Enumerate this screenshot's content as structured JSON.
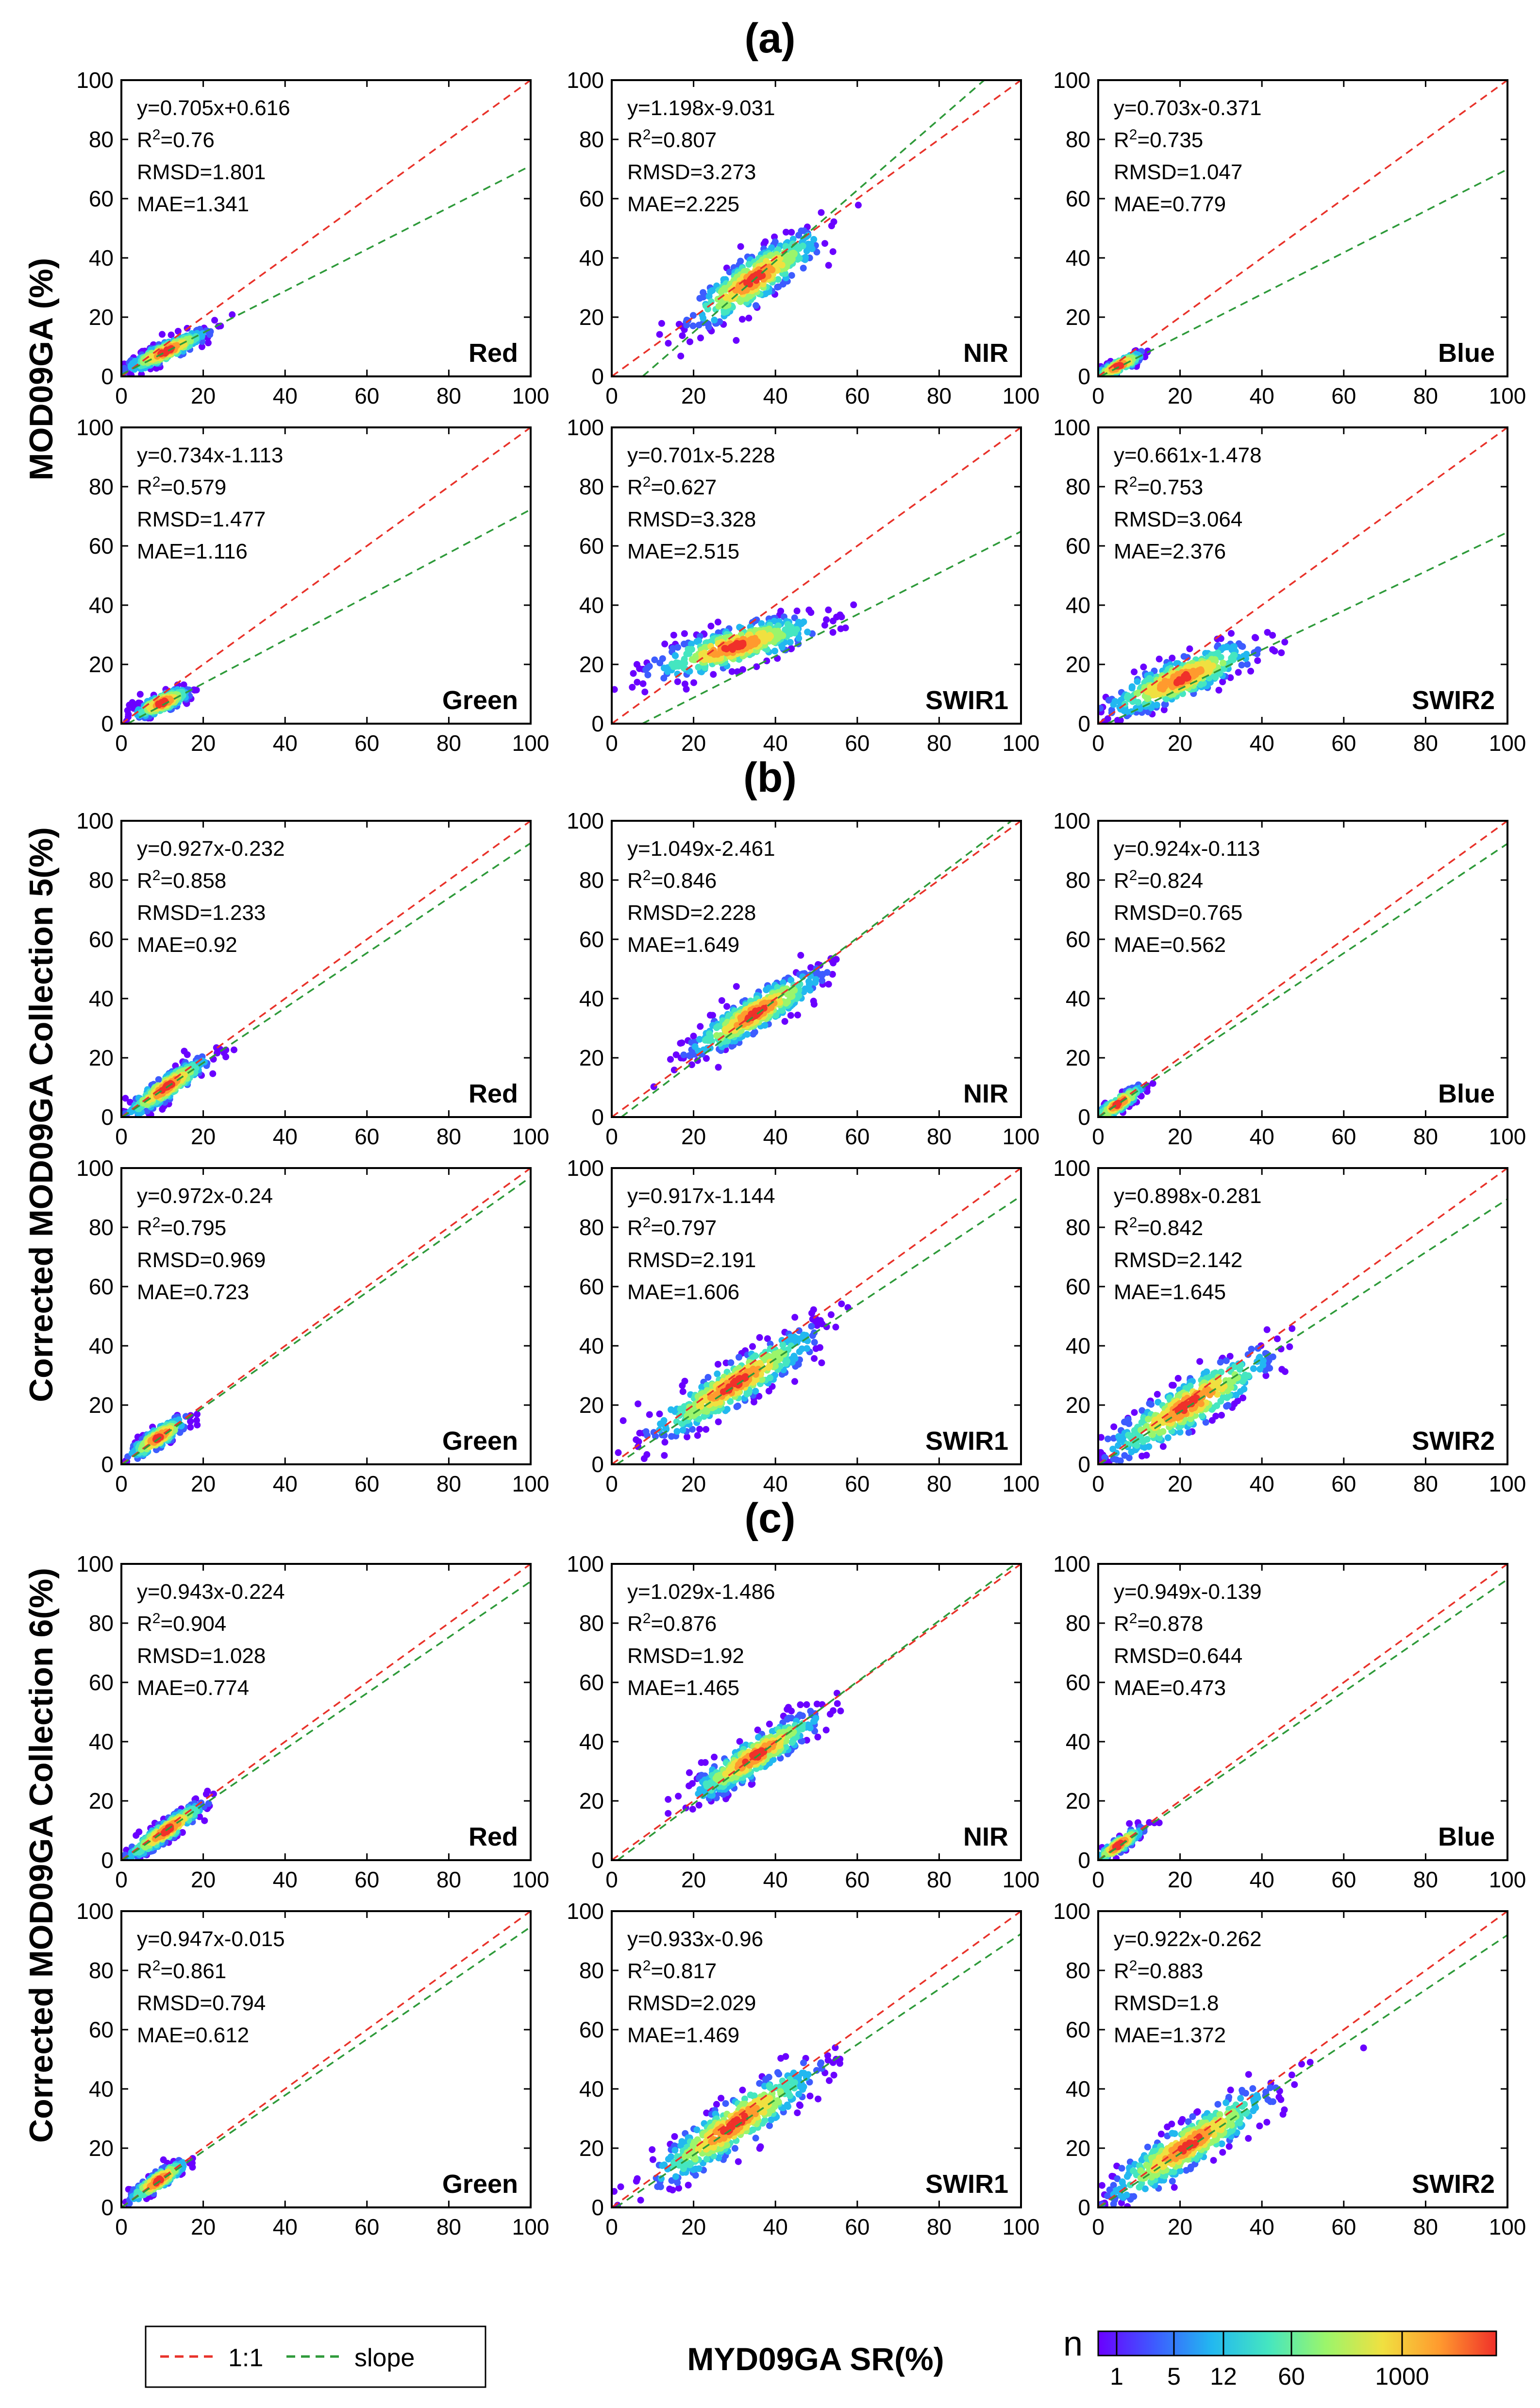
{
  "figure": {
    "section_labels": [
      "(a)",
      "(b)",
      "(c)"
    ],
    "y_labels": [
      "MOD09GA (%)",
      "Corrected MOD09GA  Collection 5(%)",
      "Corrected MOD09GA  Collection 6(%)"
    ],
    "x_label": "MYD09GA SR(%)",
    "legend": {
      "one_to_one": "1:1",
      "slope": "slope"
    },
    "colorbar": {
      "label": "n",
      "ticks": [
        "1",
        "5",
        "12",
        "60",
        "1000"
      ]
    },
    "axis_ticks": [
      "0",
      "20",
      "40",
      "60",
      "80",
      "100"
    ]
  },
  "colors": {
    "one_to_one": "#e8322a",
    "slope": "#2e9a3a",
    "colormap": [
      "#6a00ff",
      "#3d5cff",
      "#22b8f0",
      "#45e6c0",
      "#9bf56b",
      "#f0e040",
      "#ff9a2e",
      "#f0302a"
    ]
  },
  "chart_data": [
    {
      "type": "scatter",
      "section": "a",
      "band": "Red",
      "slope": 0.705,
      "intercept": 0.616,
      "equation": "y=0.705x+0.616",
      "r2": "0.76",
      "rmsd": "RMSD=1.801",
      "mae": "MAE=1.341",
      "cloud": {
        "cx": 11,
        "cy": 8.5,
        "sx": 5,
        "sy": 3.5,
        "rho": 0.88,
        "n": 280
      },
      "xlim": [
        0,
        100
      ],
      "ylim": [
        0,
        100
      ]
    },
    {
      "type": "scatter",
      "section": "a",
      "band": "NIR",
      "slope": 1.198,
      "intercept": -9.031,
      "equation": "y=1.198x-9.031",
      "r2": "0.807",
      "rmsd": "RMSD=3.273",
      "mae": "MAE=2.225",
      "cloud": {
        "cx": 35,
        "cy": 33,
        "sx": 8,
        "sy": 8,
        "rho": 0.85,
        "n": 420
      },
      "xlim": [
        0,
        100
      ],
      "ylim": [
        0,
        100
      ]
    },
    {
      "type": "scatter",
      "section": "a",
      "band": "Blue",
      "slope": 0.703,
      "intercept": -0.371,
      "equation": "y=0.703x-0.371",
      "r2": "0.735",
      "rmsd": "RMSD=1.047",
      "mae": "MAE=0.779",
      "cloud": {
        "cx": 5,
        "cy": 3.5,
        "sx": 3,
        "sy": 2.3,
        "rho": 0.85,
        "n": 160
      },
      "xlim": [
        0,
        100
      ],
      "ylim": [
        0,
        100
      ]
    },
    {
      "type": "scatter",
      "section": "a",
      "band": "Green",
      "slope": 0.734,
      "intercept": -1.113,
      "equation": "y=0.734x-1.113",
      "r2": "0.579",
      "rmsd": "RMSD=1.477",
      "mae": "MAE=1.116",
      "cloud": {
        "cx": 10,
        "cy": 7,
        "sx": 3.5,
        "sy": 2.5,
        "rho": 0.75,
        "n": 220
      },
      "xlim": [
        0,
        100
      ],
      "ylim": [
        0,
        100
      ]
    },
    {
      "type": "scatter",
      "section": "a",
      "band": "SWIR1",
      "slope": 0.701,
      "intercept": -5.228,
      "equation": "y=0.701x-5.228",
      "r2": "0.627",
      "rmsd": "RMSD=3.328",
      "mae": "MAE=2.515",
      "cloud": {
        "cx": 30,
        "cy": 26,
        "sx": 10,
        "sy": 5,
        "rho": 0.75,
        "n": 420
      },
      "xlim": [
        0,
        100
      ],
      "ylim": [
        0,
        100
      ]
    },
    {
      "type": "scatter",
      "section": "a",
      "band": "SWIR2",
      "slope": 0.661,
      "intercept": -1.478,
      "equation": "y=0.661x-1.478",
      "r2": "0.753",
      "rmsd": "RMSD=3.064",
      "mae": "MAE=2.376",
      "cloud": {
        "cx": 20,
        "cy": 15,
        "sx": 9,
        "sy": 6,
        "rho": 0.82,
        "n": 420
      },
      "xlim": [
        0,
        100
      ],
      "ylim": [
        0,
        100
      ]
    },
    {
      "type": "scatter",
      "section": "b",
      "band": "Red",
      "slope": 0.927,
      "intercept": -0.232,
      "equation": "y=0.927x-0.232",
      "r2": "0.858",
      "rmsd": "RMSD=1.233",
      "mae": "MAE=0.92",
      "cloud": {
        "cx": 11,
        "cy": 10,
        "sx": 5,
        "sy": 5,
        "rho": 0.9,
        "n": 300
      },
      "xlim": [
        0,
        100
      ],
      "ylim": [
        0,
        100
      ]
    },
    {
      "type": "scatter",
      "section": "b",
      "band": "NIR",
      "slope": 1.049,
      "intercept": -2.461,
      "equation": "y=1.049x-2.461",
      "r2": "0.846",
      "rmsd": "RMSD=2.228",
      "mae": "MAE=1.649",
      "cloud": {
        "cx": 35,
        "cy": 35,
        "sx": 8,
        "sy": 7,
        "rho": 0.88,
        "n": 420
      },
      "xlim": [
        0,
        100
      ],
      "ylim": [
        0,
        100
      ]
    },
    {
      "type": "scatter",
      "section": "b",
      "band": "Blue",
      "slope": 0.924,
      "intercept": -0.113,
      "equation": "y=0.924x-0.113",
      "r2": "0.824",
      "rmsd": "RMSD=0.765",
      "mae": "MAE=0.562",
      "cloud": {
        "cx": 5,
        "cy": 4.5,
        "sx": 3,
        "sy": 3,
        "rho": 0.88,
        "n": 160
      },
      "xlim": [
        0,
        100
      ],
      "ylim": [
        0,
        100
      ]
    },
    {
      "type": "scatter",
      "section": "b",
      "band": "Green",
      "slope": 0.972,
      "intercept": -0.24,
      "equation": "y=0.972x-0.24",
      "r2": "0.795",
      "rmsd": "RMSD=0.969",
      "mae": "MAE=0.723",
      "cloud": {
        "cx": 9,
        "cy": 9,
        "sx": 3.5,
        "sy": 3.5,
        "rho": 0.85,
        "n": 220
      },
      "xlim": [
        0,
        100
      ],
      "ylim": [
        0,
        100
      ]
    },
    {
      "type": "scatter",
      "section": "b",
      "band": "SWIR1",
      "slope": 0.917,
      "intercept": -1.144,
      "equation": "y=0.917x-1.144",
      "r2": "0.797",
      "rmsd": "RMSD=2.191",
      "mae": "MAE=1.606",
      "cloud": {
        "cx": 30,
        "cy": 27,
        "sx": 10,
        "sy": 9,
        "rho": 0.9,
        "n": 450
      },
      "xlim": [
        0,
        100
      ],
      "ylim": [
        0,
        100
      ]
    },
    {
      "type": "scatter",
      "section": "b",
      "band": "SWIR2",
      "slope": 0.898,
      "intercept": -0.281,
      "equation": "y=0.898x-0.281",
      "r2": "0.842",
      "rmsd": "RMSD=2.142",
      "mae": "MAE=1.645",
      "cloud": {
        "cx": 22,
        "cy": 20,
        "sx": 10,
        "sy": 9,
        "rho": 0.88,
        "n": 450
      },
      "xlim": [
        0,
        100
      ],
      "ylim": [
        0,
        100
      ]
    },
    {
      "type": "scatter",
      "section": "c",
      "band": "Red",
      "slope": 0.943,
      "intercept": -0.224,
      "equation": "y=0.943x-0.224",
      "r2": "0.904",
      "rmsd": "RMSD=1.028",
      "mae": "MAE=0.774",
      "cloud": {
        "cx": 11,
        "cy": 10,
        "sx": 5,
        "sy": 5,
        "rho": 0.93,
        "n": 300
      },
      "xlim": [
        0,
        100
      ],
      "ylim": [
        0,
        100
      ]
    },
    {
      "type": "scatter",
      "section": "c",
      "band": "NIR",
      "slope": 1.029,
      "intercept": -1.486,
      "equation": "y=1.029x-1.486",
      "r2": "0.876",
      "rmsd": "RMSD=1.92",
      "mae": "MAE=1.465",
      "cloud": {
        "cx": 35,
        "cy": 35,
        "sx": 8,
        "sy": 7.5,
        "rho": 0.9,
        "n": 420
      },
      "xlim": [
        0,
        100
      ],
      "ylim": [
        0,
        100
      ]
    },
    {
      "type": "scatter",
      "section": "c",
      "band": "Blue",
      "slope": 0.949,
      "intercept": -0.139,
      "equation": "y=0.949x-0.139",
      "r2": "0.878",
      "rmsd": "RMSD=0.644",
      "mae": "MAE=0.473",
      "cloud": {
        "cx": 5,
        "cy": 5,
        "sx": 3,
        "sy": 3,
        "rho": 0.9,
        "n": 160
      },
      "xlim": [
        0,
        100
      ],
      "ylim": [
        0,
        100
      ]
    },
    {
      "type": "scatter",
      "section": "c",
      "band": "Green",
      "slope": 0.947,
      "intercept": -0.015,
      "equation": "y=0.947x-0.015",
      "r2": "0.861",
      "rmsd": "RMSD=0.794",
      "mae": "MAE=0.612",
      "cloud": {
        "cx": 9,
        "cy": 9,
        "sx": 3.5,
        "sy": 3.5,
        "rho": 0.88,
        "n": 220
      },
      "xlim": [
        0,
        100
      ],
      "ylim": [
        0,
        100
      ]
    },
    {
      "type": "scatter",
      "section": "c",
      "band": "SWIR1",
      "slope": 0.933,
      "intercept": -0.96,
      "equation": "y=0.933x-0.96",
      "r2": "0.817",
      "rmsd": "RMSD=2.029",
      "mae": "MAE=1.469",
      "cloud": {
        "cx": 30,
        "cy": 28,
        "sx": 10,
        "sy": 10,
        "rho": 0.9,
        "n": 450
      },
      "xlim": [
        0,
        100
      ],
      "ylim": [
        0,
        100
      ]
    },
    {
      "type": "scatter",
      "section": "c",
      "band": "SWIR2",
      "slope": 0.922,
      "intercept": -0.262,
      "equation": "y=0.922x-0.262",
      "r2": "0.883",
      "rmsd": "RMSD=1.8",
      "mae": "MAE=1.372",
      "cloud": {
        "cx": 22,
        "cy": 21,
        "sx": 10,
        "sy": 9.5,
        "rho": 0.9,
        "n": 450
      },
      "xlim": [
        0,
        100
      ],
      "ylim": [
        0,
        100
      ]
    }
  ]
}
